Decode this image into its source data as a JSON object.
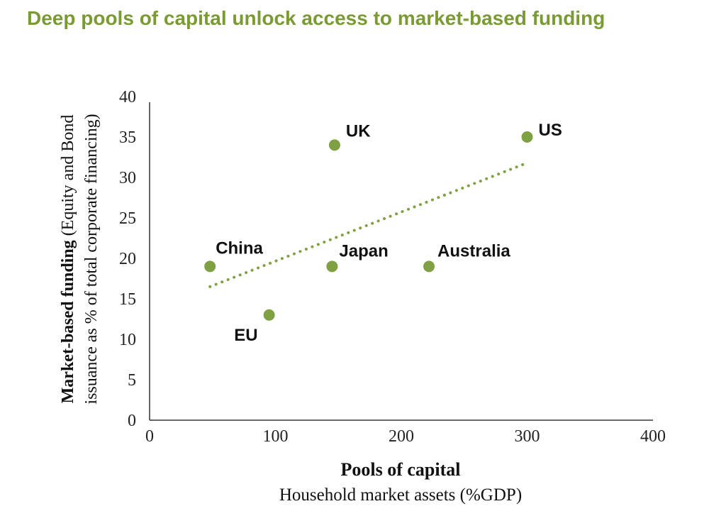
{
  "title": "Deep pools of capital unlock access to market-based funding",
  "colors": {
    "accent": "#7a9a34",
    "marker": "#7fa043"
  },
  "chart_data": {
    "type": "scatter",
    "xlabel": "Pools of capital",
    "xlabel_sub": "Household market assets (%GDP)",
    "ylabel_bold": "Market-based funding",
    "ylabel_rest1": " (Equity and Bond",
    "ylabel_line2": "issuance as % of total corporate financing)",
    "xlim": [
      0,
      400
    ],
    "ylim": [
      0,
      40
    ],
    "xticks": [
      0,
      100,
      200,
      300,
      400
    ],
    "yticks": [
      0,
      5,
      10,
      15,
      20,
      25,
      30,
      35,
      40
    ],
    "points": [
      {
        "label": "China",
        "x": 48,
        "y": 19
      },
      {
        "label": "EU",
        "x": 95,
        "y": 13
      },
      {
        "label": "UK",
        "x": 147,
        "y": 34
      },
      {
        "label": "Japan",
        "x": 145,
        "y": 19
      },
      {
        "label": "Australia",
        "x": 222,
        "y": 19
      },
      {
        "label": "US",
        "x": 300,
        "y": 35
      }
    ],
    "trendline": {
      "style": "dotted",
      "x": [
        48,
        300
      ],
      "y": [
        16.5,
        31.8
      ]
    }
  }
}
